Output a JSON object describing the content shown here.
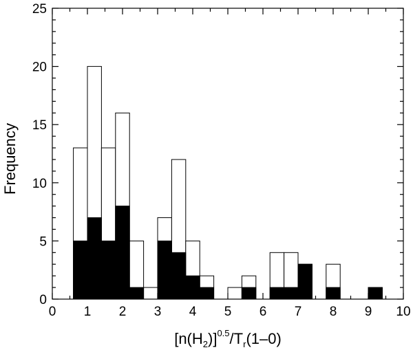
{
  "chart_data": {
    "type": "bar",
    "subtype": "histogram-overlay",
    "title": "",
    "ylabel": "Frequency",
    "xlabel_parts": {
      "open": "[n(H",
      "sub": "2",
      "close": ")]",
      "sup": "0.5",
      "slash_T": "/T",
      "sub_r": "r",
      "tail": "(1–0)"
    },
    "xlim": [
      0,
      10
    ],
    "ylim": [
      0,
      25
    ],
    "xticks": [
      "0",
      "1",
      "2",
      "3",
      "4",
      "5",
      "6",
      "7",
      "8",
      "9",
      "10"
    ],
    "yticks": [
      "0",
      "5",
      "10",
      "15",
      "20",
      "25"
    ],
    "bin_width": 0.4,
    "bin_starts": [
      0.6,
      1.0,
      1.4,
      1.8,
      2.2,
      2.6,
      3.0,
      3.4,
      3.8,
      4.2,
      4.6,
      5.0,
      5.4,
      5.8,
      6.2,
      6.6,
      7.0,
      7.4,
      7.8,
      8.2,
      8.6,
      9.0,
      9.4
    ],
    "series": [
      {
        "name": "",
        "style": "open",
        "color": "#ffffff",
        "values": [
          13,
          20,
          13,
          16,
          5,
          1,
          7,
          12,
          5,
          2,
          0,
          1,
          2,
          0,
          4,
          4,
          3,
          0,
          3,
          0,
          0,
          1,
          0
        ]
      },
      {
        "name": "",
        "style": "filled",
        "color": "#000000",
        "values": [
          5,
          7,
          5,
          8,
          1,
          0,
          5,
          4,
          2,
          1,
          0,
          0,
          1,
          0,
          1,
          1,
          3,
          0,
          1,
          0,
          0,
          1,
          0
        ]
      }
    ],
    "grid": false,
    "legend": "none"
  }
}
